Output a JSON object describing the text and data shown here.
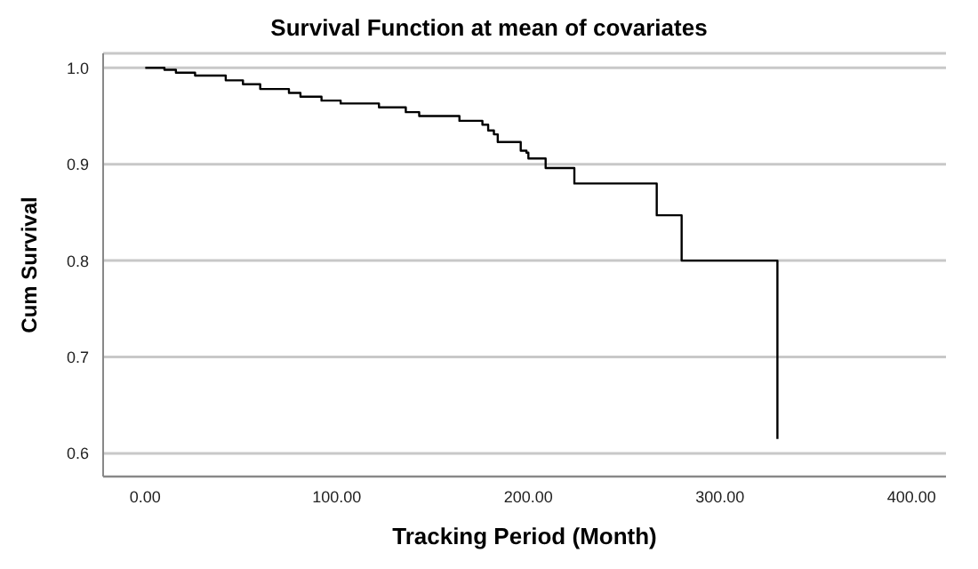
{
  "chart_data": {
    "type": "step",
    "title": "Survival Function at mean of covariates",
    "xlabel": "Tracking Period (Month)",
    "ylabel": "Cum Survival",
    "x": [
      0,
      10,
      16,
      26,
      42,
      51,
      60,
      75,
      81,
      92,
      102,
      122,
      136,
      143,
      164,
      176,
      179,
      182,
      184,
      196,
      199,
      200,
      209,
      224,
      267,
      280,
      330
    ],
    "series": [
      {
        "color": "#000000",
        "values": [
          1.0,
          0.998,
          0.995,
          0.992,
          0.987,
          0.983,
          0.978,
          0.974,
          0.97,
          0.966,
          0.963,
          0.959,
          0.954,
          0.95,
          0.945,
          0.941,
          0.935,
          0.931,
          0.923,
          0.914,
          0.912,
          0.906,
          0.896,
          0.88,
          0.847,
          0.8,
          0.615
        ]
      }
    ],
    "xlim": [
      -22,
      418
    ],
    "xticks": [
      {
        "value": 0,
        "label": "0.00"
      },
      {
        "value": 100,
        "label": "100.00"
      },
      {
        "value": 200,
        "label": "200.00"
      },
      {
        "value": 300,
        "label": "300.00"
      },
      {
        "value": 400,
        "label": "400.00"
      }
    ],
    "ylim": [
      0.576,
      1.015
    ],
    "yticks": [
      0.6,
      0.7,
      0.8,
      0.9,
      {
        "value": 1,
        "label": "1.0"
      }
    ],
    "grid": "y",
    "marker": "none",
    "line_style": "solid"
  }
}
